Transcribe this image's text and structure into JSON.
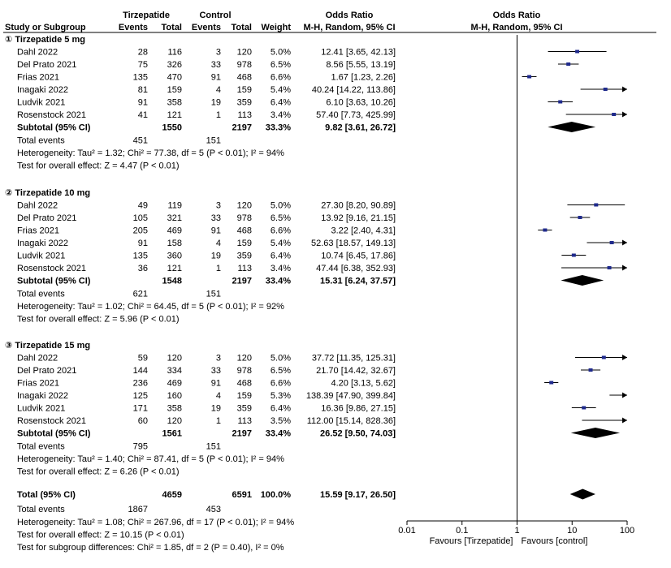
{
  "chart_data": {
    "type": "forest",
    "header": {
      "col_study": "Study or Subgroup",
      "group_tirz": "Tirzepatide",
      "group_ctrl": "Control",
      "col_events": "Events",
      "col_total": "Total",
      "col_weight": "Weight",
      "col_or_title": "Odds Ratio",
      "col_or_method": "M-H, Random, 95% CI",
      "plot_title": "Odds Ratio",
      "plot_method": "M-H, Random, 95% CI"
    },
    "subgroups": [
      {
        "title": "① Tirzepatide 5 mg",
        "studies": [
          {
            "name": "Dahl 2022",
            "te": "28",
            "tt": "116",
            "ce": "3",
            "ct": "120",
            "w": "5.0%",
            "ci": "12.41 [3.65, 42.13]",
            "or": 12.41,
            "lo": 3.65,
            "hi": 42.13
          },
          {
            "name": "Del Prato 2021",
            "te": "75",
            "tt": "326",
            "ce": "33",
            "ct": "978",
            "w": "6.5%",
            "ci": "8.56 [5.55, 13.19]",
            "or": 8.56,
            "lo": 5.55,
            "hi": 13.19
          },
          {
            "name": "Frias 2021",
            "te": "135",
            "tt": "470",
            "ce": "91",
            "ct": "468",
            "w": "6.6%",
            "ci": "1.67 [1.23, 2.26]",
            "or": 1.67,
            "lo": 1.23,
            "hi": 2.26
          },
          {
            "name": "Inagaki 2022",
            "te": "81",
            "tt": "159",
            "ce": "4",
            "ct": "159",
            "w": "5.4%",
            "ci": "40.24 [14.22, 113.86]",
            "or": 40.24,
            "lo": 14.22,
            "hi": 113.86
          },
          {
            "name": "Ludvik 2021",
            "te": "91",
            "tt": "358",
            "ce": "19",
            "ct": "359",
            "w": "6.4%",
            "ci": "6.10 [3.63, 10.26]",
            "or": 6.1,
            "lo": 3.63,
            "hi": 10.26
          },
          {
            "name": "Rosenstock 2021",
            "te": "41",
            "tt": "121",
            "ce": "1",
            "ct": "113",
            "w": "3.4%",
            "ci": "57.40 [7.73, 425.99]",
            "or": 57.4,
            "lo": 7.73,
            "hi": 425.99
          }
        ],
        "subtotal": {
          "label": "Subtotal (95% CI)",
          "tt": "1550",
          "ct": "2197",
          "w": "33.3%",
          "ci": "9.82 [3.61, 26.72]",
          "or": 9.82,
          "lo": 3.61,
          "hi": 26.72
        },
        "events": {
          "label": "Total events",
          "te": "451",
          "ce": "151"
        },
        "heterogeneity": "Heterogeneity: Tau² = 1.32; Chi² = 77.38, df = 5 (P < 0.01); I² = 94%",
        "overall": "Test for overall effect: Z = 4.47 (P < 0.01)"
      },
      {
        "title": "② Tirzepatide 10 mg",
        "studies": [
          {
            "name": "Dahl 2022",
            "te": "49",
            "tt": "119",
            "ce": "3",
            "ct": "120",
            "w": "5.0%",
            "ci": "27.30 [8.20, 90.89]",
            "or": 27.3,
            "lo": 8.2,
            "hi": 90.89
          },
          {
            "name": "Del Prato 2021",
            "te": "105",
            "tt": "321",
            "ce": "33",
            "ct": "978",
            "w": "6.5%",
            "ci": "13.92 [9.16, 21.15]",
            "or": 13.92,
            "lo": 9.16,
            "hi": 21.15
          },
          {
            "name": "Frias 2021",
            "te": "205",
            "tt": "469",
            "ce": "91",
            "ct": "468",
            "w": "6.6%",
            "ci": "3.22 [2.40, 4.31]",
            "or": 3.22,
            "lo": 2.4,
            "hi": 4.31
          },
          {
            "name": "Inagaki 2022",
            "te": "91",
            "tt": "158",
            "ce": "4",
            "ct": "159",
            "w": "5.4%",
            "ci": "52.63 [18.57, 149.13]",
            "or": 52.63,
            "lo": 18.57,
            "hi": 149.13
          },
          {
            "name": "Ludvik 2021",
            "te": "135",
            "tt": "360",
            "ce": "19",
            "ct": "359",
            "w": "6.4%",
            "ci": "10.74 [6.45, 17.86]",
            "or": 10.74,
            "lo": 6.45,
            "hi": 17.86
          },
          {
            "name": "Rosenstock 2021",
            "te": "36",
            "tt": "121",
            "ce": "1",
            "ct": "113",
            "w": "3.4%",
            "ci": "47.44 [6.38, 352.93]",
            "or": 47.44,
            "lo": 6.38,
            "hi": 352.93
          }
        ],
        "subtotal": {
          "label": "Subtotal (95% CI)",
          "tt": "1548",
          "ct": "2197",
          "w": "33.4%",
          "ci": "15.31 [6.24, 37.57]",
          "or": 15.31,
          "lo": 6.24,
          "hi": 37.57
        },
        "events": {
          "label": "Total events",
          "te": "621",
          "ce": "151"
        },
        "heterogeneity": "Heterogeneity: Tau² = 1.02; Chi² = 64.45, df = 5 (P < 0.01); I² = 92%",
        "overall": "Test for overall effect: Z = 5.96 (P < 0.01)"
      },
      {
        "title": "③ Tirzepatide 15 mg",
        "studies": [
          {
            "name": "Dahl 2022",
            "te": "59",
            "tt": "120",
            "ce": "3",
            "ct": "120",
            "w": "5.0%",
            "ci": "37.72 [11.35, 125.31]",
            "or": 37.72,
            "lo": 11.35,
            "hi": 125.31
          },
          {
            "name": "Del Prato 2021",
            "te": "144",
            "tt": "334",
            "ce": "33",
            "ct": "978",
            "w": "6.5%",
            "ci": "21.70 [14.42, 32.67]",
            "or": 21.7,
            "lo": 14.42,
            "hi": 32.67
          },
          {
            "name": "Frias 2021",
            "te": "236",
            "tt": "469",
            "ce": "91",
            "ct": "468",
            "w": "6.6%",
            "ci": "4.20 [3.13, 5.62]",
            "or": 4.2,
            "lo": 3.13,
            "hi": 5.62
          },
          {
            "name": "Inagaki 2022",
            "te": "125",
            "tt": "160",
            "ce": "4",
            "ct": "159",
            "w": "5.3%",
            "ci": "138.39 [47.90, 399.84]",
            "or": 138.39,
            "lo": 47.9,
            "hi": 399.84
          },
          {
            "name": "Ludvik 2021",
            "te": "171",
            "tt": "358",
            "ce": "19",
            "ct": "359",
            "w": "6.4%",
            "ci": "16.36 [9.86, 27.15]",
            "or": 16.36,
            "lo": 9.86,
            "hi": 27.15
          },
          {
            "name": "Rosenstock 2021",
            "te": "60",
            "tt": "120",
            "ce": "1",
            "ct": "113",
            "w": "3.5%",
            "ci": "112.00 [15.14, 828.36]",
            "or": 112.0,
            "lo": 15.14,
            "hi": 828.36
          }
        ],
        "subtotal": {
          "label": "Subtotal (95% CI)",
          "tt": "1561",
          "ct": "2197",
          "w": "33.4%",
          "ci": "26.52 [9.50, 74.03]",
          "or": 26.52,
          "lo": 9.5,
          "hi": 74.03
        },
        "events": {
          "label": "Total events",
          "te": "795",
          "ce": "151"
        },
        "heterogeneity": "Heterogeneity: Tau² = 1.40; Chi² = 87.41, df = 5 (P < 0.01); I² = 94%",
        "overall": "Test for overall effect: Z = 6.26 (P < 0.01)"
      }
    ],
    "total": {
      "label": "Total (95% CI)",
      "tt": "4659",
      "ct": "6591",
      "w": "100.0%",
      "ci": "15.59 [9.17, 26.50]",
      "or": 15.59,
      "lo": 9.17,
      "hi": 26.5
    },
    "total_events": {
      "label": "Total events",
      "te": "1867",
      "ce": "453"
    },
    "footer": [
      "Heterogeneity: Tau² = 1.08; Chi² = 267.96, df = 17 (P < 0.01); I² = 94%",
      "Test for overall effect: Z = 10.15 (P < 0.01)",
      "Test for subgroup differences: Chi² = 1.85, df = 2 (P = 0.40), I² = 0%"
    ],
    "x_axis": {
      "scale": "log",
      "range": [
        0.01,
        100
      ],
      "ticks": [
        0.01,
        0.1,
        1,
        10,
        100
      ],
      "tick_labels": [
        "0.01",
        "0.1",
        "1",
        "10",
        "100"
      ],
      "favours_left": "Favours [Tirzepatide]",
      "favours_right": "Favours [control]"
    },
    "colors": {
      "study_marker": "#1f2a8c",
      "diamond": "#000000",
      "text": "#000000"
    }
  }
}
